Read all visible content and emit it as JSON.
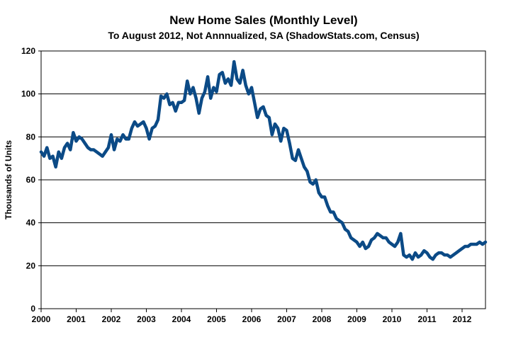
{
  "chart_data": {
    "type": "line",
    "title": "New Home Sales (Monthly Level)",
    "subtitle": "To August 2012, Not Annnualized, SA (ShadowStats.com, Census)",
    "xlabel": "",
    "ylabel": "Thousands of Units",
    "xlim": [
      2000,
      2012.667
    ],
    "ylim": [
      0,
      120
    ],
    "yticks": [
      0,
      20,
      40,
      60,
      80,
      100,
      120
    ],
    "xticks": [
      "2000",
      "2001",
      "2002",
      "2003",
      "2004",
      "2005",
      "2006",
      "2007",
      "2008",
      "2009",
      "2010",
      "2011",
      "2012"
    ],
    "grid": true,
    "legend": "none",
    "line_color": "#0b4a86",
    "x_start": 2000,
    "x_step": 0.08333,
    "values": [
      73,
      71,
      75,
      70,
      71,
      66,
      73,
      70,
      75,
      77,
      74,
      82,
      78,
      80,
      79,
      77,
      75,
      74,
      74,
      73,
      72,
      71,
      73,
      75,
      81,
      74,
      79,
      78,
      81,
      79,
      79,
      84,
      87,
      85,
      86,
      87,
      84,
      79,
      84,
      85,
      88,
      99,
      98,
      100,
      95,
      96,
      92,
      96,
      96,
      97,
      106,
      100,
      103,
      98,
      91,
      98,
      101,
      108,
      98,
      103,
      101,
      109,
      110,
      105,
      107,
      104,
      115,
      107,
      105,
      111,
      104,
      100,
      103,
      96,
      89,
      93,
      94,
      90,
      89,
      81,
      86,
      84,
      78,
      84,
      83,
      77,
      70,
      69,
      74,
      70,
      66,
      64,
      59,
      58,
      60,
      54,
      52,
      52,
      48,
      45,
      45,
      42,
      41,
      40,
      37,
      36,
      33,
      32,
      31,
      29,
      31,
      28,
      29,
      32,
      33,
      35,
      34,
      33,
      33,
      31,
      30,
      29,
      31,
      35,
      25,
      24,
      25,
      23,
      26,
      24,
      25,
      27,
      26,
      24,
      23,
      25,
      26,
      26,
      25,
      25,
      24,
      25,
      26,
      27,
      28,
      29,
      29,
      30,
      30,
      30,
      31,
      30,
      31
    ]
  }
}
